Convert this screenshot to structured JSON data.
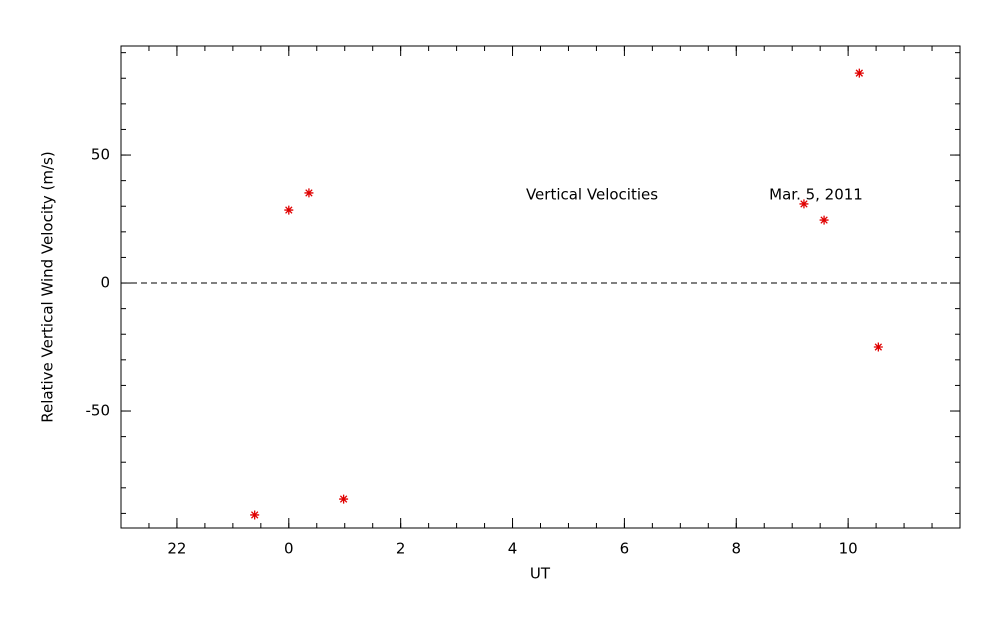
{
  "chart_data": {
    "type": "scatter",
    "xlabel": "UT",
    "ylabel": "Relative Vertical Wind Velocity (m/s)",
    "annotations": [
      "Vertical Velocities",
      "Mar. 5, 2011"
    ],
    "x": [
      -0.61,
      0,
      0.36,
      0.98,
      9.21,
      9.57,
      10.2,
      10.54
    ],
    "values": [
      -90.6,
      28.5,
      35.2,
      -84.4,
      30.9,
      24.6,
      82.0,
      -25.0
    ],
    "color": "#e00000",
    "marker": "asterisk",
    "xlim": [
      -3,
      12
    ],
    "xticks": [
      {
        "value": -2,
        "label": "22"
      },
      0,
      2,
      4,
      6,
      8,
      10
    ],
    "minor_xtick_step": 0.5,
    "ylim": [
      -95.7,
      92.6
    ],
    "yticks": [
      -50,
      0,
      50
    ],
    "minor_ytick_step": 10,
    "zero_line": true
  }
}
